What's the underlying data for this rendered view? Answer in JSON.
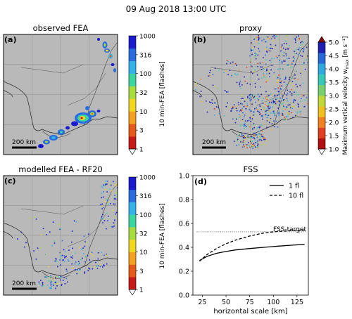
{
  "figure": {
    "title": "09 Aug 2018 13:00 UTC"
  },
  "panels": {
    "a": {
      "letter": "(a)",
      "title": "observed FEA",
      "scalebar": "200 km"
    },
    "b": {
      "letter": "(b)",
      "title": "proxy",
      "scalebar": "200 km"
    },
    "c": {
      "letter": "(c)",
      "title": "modelled FEA - RF20",
      "scalebar": "200 km"
    },
    "d": {
      "letter": "(d)",
      "title": "FSS"
    }
  },
  "colorbars": {
    "fea_top": {
      "label": "10 min-FEA [flashes]",
      "ticks": [
        "1000",
        "316",
        "100",
        "32",
        "10",
        "3",
        "1"
      ],
      "colors": [
        "#1a1ad0",
        "#2a6be0",
        "#32b4e8",
        "#3ad6a0",
        "#a8dc3c",
        "#f0d820",
        "#f4a020",
        "#e85818",
        "#c81818"
      ]
    },
    "proxy": {
      "label": "Maximum vertical velocity w",
      "label_sub": "max",
      "label_unit": " [m s⁻¹]",
      "ticks": [
        "5.0",
        "4.5",
        "4.0",
        "3.5",
        "3.0",
        "2.5",
        "2.0",
        "1.5",
        "1.0"
      ],
      "colors": [
        "#2020b0",
        "#2868d8",
        "#30a8e0",
        "#38c8b8",
        "#78d070",
        "#c0d838",
        "#f0c020",
        "#f08020",
        "#e04020",
        "#b01010"
      ]
    },
    "fea_bottom": {
      "label": "10 min-FEA [flashes]",
      "ticks": [
        "1000",
        "316",
        "100",
        "32",
        "10",
        "3",
        "1"
      ],
      "colors": [
        "#1a1ad0",
        "#2a6be0",
        "#32b4e8",
        "#3ad6a0",
        "#a8dc3c",
        "#f0d820",
        "#f4a020",
        "#e85818",
        "#c81818"
      ]
    }
  },
  "chart_data": {
    "type": "line",
    "title": "FSS",
    "xlabel": "horizontal scale [km]",
    "ylabel": "",
    "xlim": [
      15,
      137
    ],
    "ylim": [
      0.0,
      1.0
    ],
    "xticks": [
      25,
      50,
      75,
      100,
      125
    ],
    "yticks": [
      0.0,
      0.2,
      0.4,
      0.6,
      0.8,
      1.0
    ],
    "series": [
      {
        "name": "1 fl",
        "style": "solid",
        "x": [
          22,
          30,
          40,
          50,
          60,
          75,
          90,
          105,
          120,
          133
        ],
        "y": [
          0.29,
          0.325,
          0.35,
          0.365,
          0.378,
          0.39,
          0.4,
          0.41,
          0.418,
          0.425
        ]
      },
      {
        "name": "10 fl",
        "style": "dashed",
        "x": [
          22,
          30,
          40,
          50,
          60,
          75,
          90,
          100,
          110,
          120,
          133
        ],
        "y": [
          0.285,
          0.34,
          0.39,
          0.43,
          0.46,
          0.495,
          0.52,
          0.53,
          0.535,
          0.54,
          0.545
        ]
      }
    ],
    "reference": {
      "label": "FSS-target",
      "y": 0.53,
      "style": "dotted"
    },
    "legend": "top-right"
  }
}
